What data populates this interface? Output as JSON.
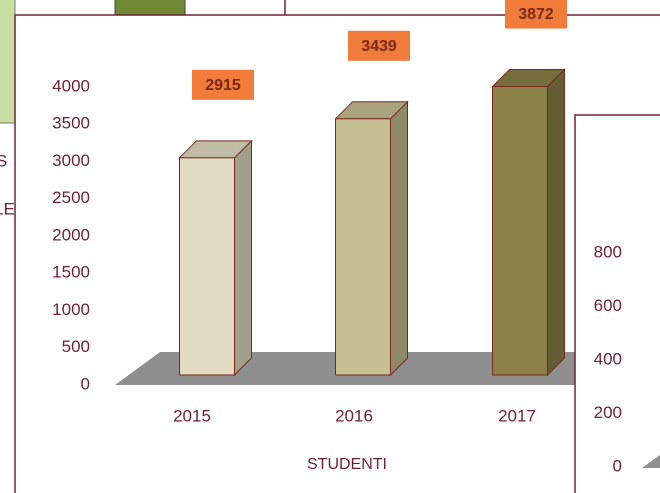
{
  "chart_data": [
    {
      "type": "bar3d",
      "categories": [
        "2015",
        "2016",
        "2017"
      ],
      "values": [
        2915,
        3439,
        3872
      ],
      "colors": [
        "#e1dcc2",
        "#c6bf93",
        "#8b8149"
      ],
      "label_color": "#f07b3a",
      "xlabel": "STUDENTI",
      "ylim": [
        0,
        4000
      ],
      "yticks": [
        0,
        500,
        1000,
        1500,
        2000,
        2500,
        3000,
        3500,
        4000
      ]
    },
    {
      "type": "axis-only",
      "ylim": [
        0,
        800
      ],
      "yticks": [
        0,
        200,
        400,
        600,
        800
      ]
    }
  ],
  "background_fragments": [
    "S",
    "LE"
  ]
}
